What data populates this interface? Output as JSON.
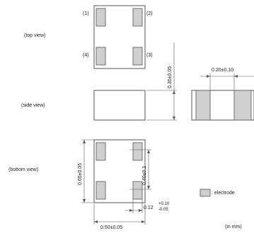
{
  "views": {
    "top": "(top view)",
    "side": "(side view)",
    "bottom": "(bottom view)"
  },
  "pins": {
    "p1": "(1)",
    "p2": "(2)",
    "p3": "(3)",
    "p4": "(4)"
  },
  "dimensions": {
    "side_height": "0.30±0.05",
    "end_width": "0.20±0.10",
    "length": "0.65±0.05",
    "pitch": "0.40±0.1",
    "pad_width_base": "0.12",
    "pad_width_plus": "+0.10",
    "pad_width_minus": "-0.05",
    "width": "0.50±0.05"
  },
  "legend": {
    "electrode": ": electrode"
  },
  "units": "(in mm)",
  "colors": {
    "electrode_fill": "#cfcfcf",
    "outline": "#555555"
  }
}
